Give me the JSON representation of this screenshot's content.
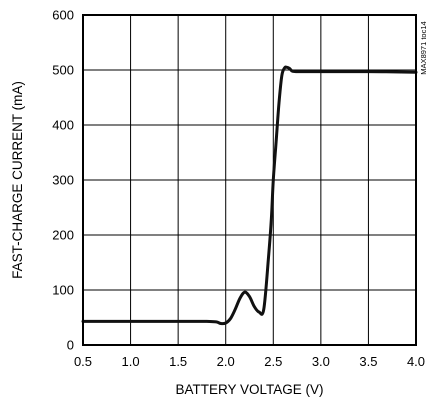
{
  "figure_id": "MAX8971 toc14",
  "colors": {
    "curve": "#111111",
    "grid": "#000000",
    "frame": "#000000"
  },
  "chart_data": {
    "type": "line",
    "xlabel": "BATTERY VOLTAGE (V)",
    "ylabel": "FAST-CHARGE CURRENT (mA)",
    "xlim": [
      0.5,
      4.0
    ],
    "ylim": [
      0,
      600
    ],
    "x_ticks": [
      "0.5",
      "1.0",
      "1.5",
      "2.0",
      "2.5",
      "3.0",
      "3.5",
      "4.0"
    ],
    "y_ticks": [
      "0",
      "100",
      "200",
      "300",
      "400",
      "500",
      "600"
    ],
    "grid": true,
    "series": [
      {
        "x": [
          0.5,
          1.0,
          1.5,
          1.8,
          1.9,
          1.95,
          2.0,
          2.05,
          2.1,
          2.15,
          2.2,
          2.25,
          2.3,
          2.35,
          2.4,
          2.45,
          2.48,
          2.5,
          2.53,
          2.56,
          2.59,
          2.62,
          2.64,
          2.67,
          2.7,
          2.75,
          2.8,
          3.0,
          3.5,
          4.0
        ],
        "y": [
          43,
          43,
          43,
          43,
          42,
          39,
          40,
          48,
          65,
          85,
          96,
          88,
          70,
          60,
          65,
          160,
          230,
          300,
          370,
          440,
          490,
          504,
          505,
          503,
          498,
          497,
          497,
          497,
          497,
          496
        ]
      }
    ]
  }
}
